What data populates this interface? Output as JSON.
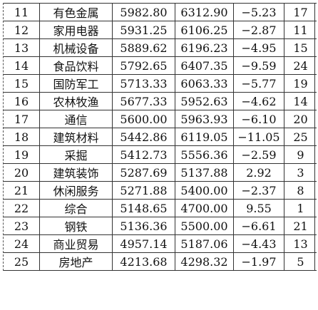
{
  "rows": [
    {
      "rank": "11",
      "industry": "有色金属",
      "value_a": "5982.80",
      "value_b": "6312.90",
      "change": "−5.23",
      "prev_rank": "17"
    },
    {
      "rank": "12",
      "industry": "家用电器",
      "value_a": "5931.25",
      "value_b": "6106.25",
      "change": "−2.87",
      "prev_rank": "11"
    },
    {
      "rank": "13",
      "industry": "机械设备",
      "value_a": "5889.62",
      "value_b": "6196.23",
      "change": "−4.95",
      "prev_rank": "15"
    },
    {
      "rank": "14",
      "industry": "食品饮料",
      "value_a": "5792.65",
      "value_b": "6407.35",
      "change": "−9.59",
      "prev_rank": "24"
    },
    {
      "rank": "15",
      "industry": "国防军工",
      "value_a": "5713.33",
      "value_b": "6063.33",
      "change": "−5.77",
      "prev_rank": "19"
    },
    {
      "rank": "16",
      "industry": "农林牧渔",
      "value_a": "5677.33",
      "value_b": "5952.63",
      "change": "−4.62",
      "prev_rank": "14"
    },
    {
      "rank": "17",
      "industry": "通信",
      "value_a": "5600.00",
      "value_b": "5963.93",
      "change": "−6.10",
      "prev_rank": "20"
    },
    {
      "rank": "18",
      "industry": "建筑材料",
      "value_a": "5442.86",
      "value_b": "6119.05",
      "change": "−11.05",
      "prev_rank": "25"
    },
    {
      "rank": "19",
      "industry": "采掘",
      "value_a": "5412.73",
      "value_b": "5556.36",
      "change": "−2.59",
      "prev_rank": "9"
    },
    {
      "rank": "20",
      "industry": "建筑装饰",
      "value_a": "5287.69",
      "value_b": "5137.88",
      "change": "2.92",
      "prev_rank": "3"
    },
    {
      "rank": "21",
      "industry": "休闲服务",
      "value_a": "5271.88",
      "value_b": "5400.00",
      "change": "−2.37",
      "prev_rank": "8"
    },
    {
      "rank": "22",
      "industry": "综合",
      "value_a": "5148.65",
      "value_b": "4700.00",
      "change": "9.55",
      "prev_rank": "1"
    },
    {
      "rank": "23",
      "industry": "钢铁",
      "value_a": "5136.36",
      "value_b": "5500.00",
      "change": "−6.61",
      "prev_rank": "21"
    },
    {
      "rank": "24",
      "industry": "商业贸易",
      "value_a": "4957.14",
      "value_b": "5187.06",
      "change": "−4.43",
      "prev_rank": "13"
    },
    {
      "rank": "25",
      "industry": "房地产",
      "value_a": "4213.68",
      "value_b": "4298.32",
      "change": "−1.97",
      "prev_rank": "5"
    }
  ]
}
